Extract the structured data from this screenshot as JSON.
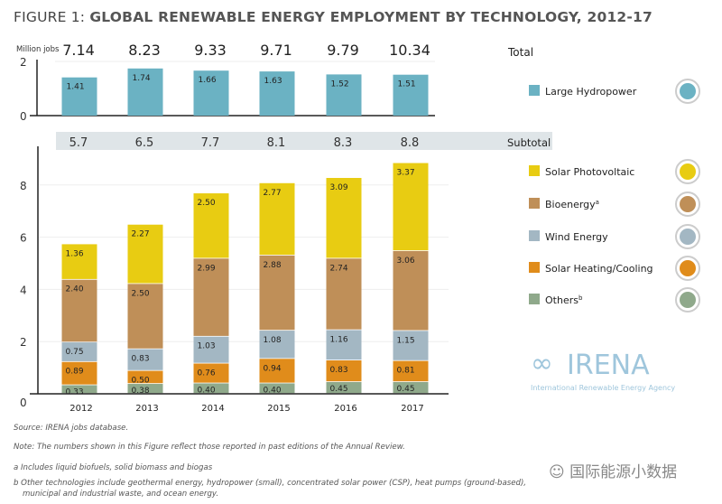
{
  "title_prefix": "FIGURE 1:",
  "title_main": "GLOBAL RENEWABLE ENERGY EMPLOYMENT BY TECHNOLOGY, 2012-17",
  "chart_data": [
    {
      "type": "bar",
      "ylabel": "Million jobs",
      "categories": [
        "2012",
        "2013",
        "2014",
        "2015",
        "2016",
        "2017"
      ],
      "ylim": [
        0,
        2
      ],
      "yticks": [
        "0",
        "2"
      ],
      "series": [
        {
          "name": "Large Hydropower",
          "values": [
            1.41,
            1.74,
            1.66,
            1.63,
            1.52,
            1.51
          ],
          "color": "#6bb2c3",
          "icon": "water-drop-icon"
        }
      ],
      "totals_label": "Total",
      "totals": [
        "7.14",
        "8.23",
        "9.33",
        "9.71",
        "9.79",
        "10.34"
      ]
    },
    {
      "type": "bar",
      "stacked": true,
      "categories": [
        "2012",
        "2013",
        "2014",
        "2015",
        "2016",
        "2017"
      ],
      "ylim": [
        0,
        9
      ],
      "yticks": [
        "0",
        "2",
        "4",
        "6",
        "8"
      ],
      "subtotal_label": "Subtotal",
      "subtotals": [
        "5.7",
        "6.5",
        "7.7",
        "8.1",
        "8.3",
        "8.8"
      ],
      "series": [
        {
          "name": "Others",
          "sup": "b",
          "values": [
            0.33,
            0.38,
            0.4,
            0.4,
            0.45,
            0.45
          ],
          "color": "#8fa98b",
          "icon": "plus-icon"
        },
        {
          "name": "Solar Heating/Cooling",
          "values": [
            0.89,
            0.5,
            0.76,
            0.94,
            0.83,
            0.81
          ],
          "color": "#e08c1b",
          "icon": "sun-icon"
        },
        {
          "name": "Wind Energy",
          "values": [
            0.75,
            0.83,
            1.03,
            1.08,
            1.16,
            1.15
          ],
          "color": "#a3b7c3",
          "icon": "wind-icon"
        },
        {
          "name": "Bioenergy",
          "sup": "a",
          "values": [
            2.4,
            2.5,
            2.99,
            2.88,
            2.74,
            3.06
          ],
          "color": "#bf8f58",
          "icon": "leaf-icon"
        },
        {
          "name": "Solar Photovoltaic",
          "values": [
            1.36,
            2.27,
            2.5,
            2.77,
            3.09,
            3.37
          ],
          "color": "#e8cc12",
          "icon": "sun-icon"
        }
      ]
    }
  ],
  "logo": {
    "name": "IRENA",
    "subtitle": "International Renewable Energy Agency"
  },
  "notes": {
    "source": "Source: IRENA jobs database.",
    "note": "Note: The numbers shown in this Figure reflect those reported in past editions of the Annual Review.",
    "a": "a  Includes liquid biofuels, solid biomass and biogas",
    "b1": "b  Other technologies include geothermal energy, hydropower (small), concentrated solar power (CSP), heat pumps (ground-based),",
    "b2": "municipal and industrial waste, and ocean energy."
  },
  "watermark": "国际能源小数据"
}
